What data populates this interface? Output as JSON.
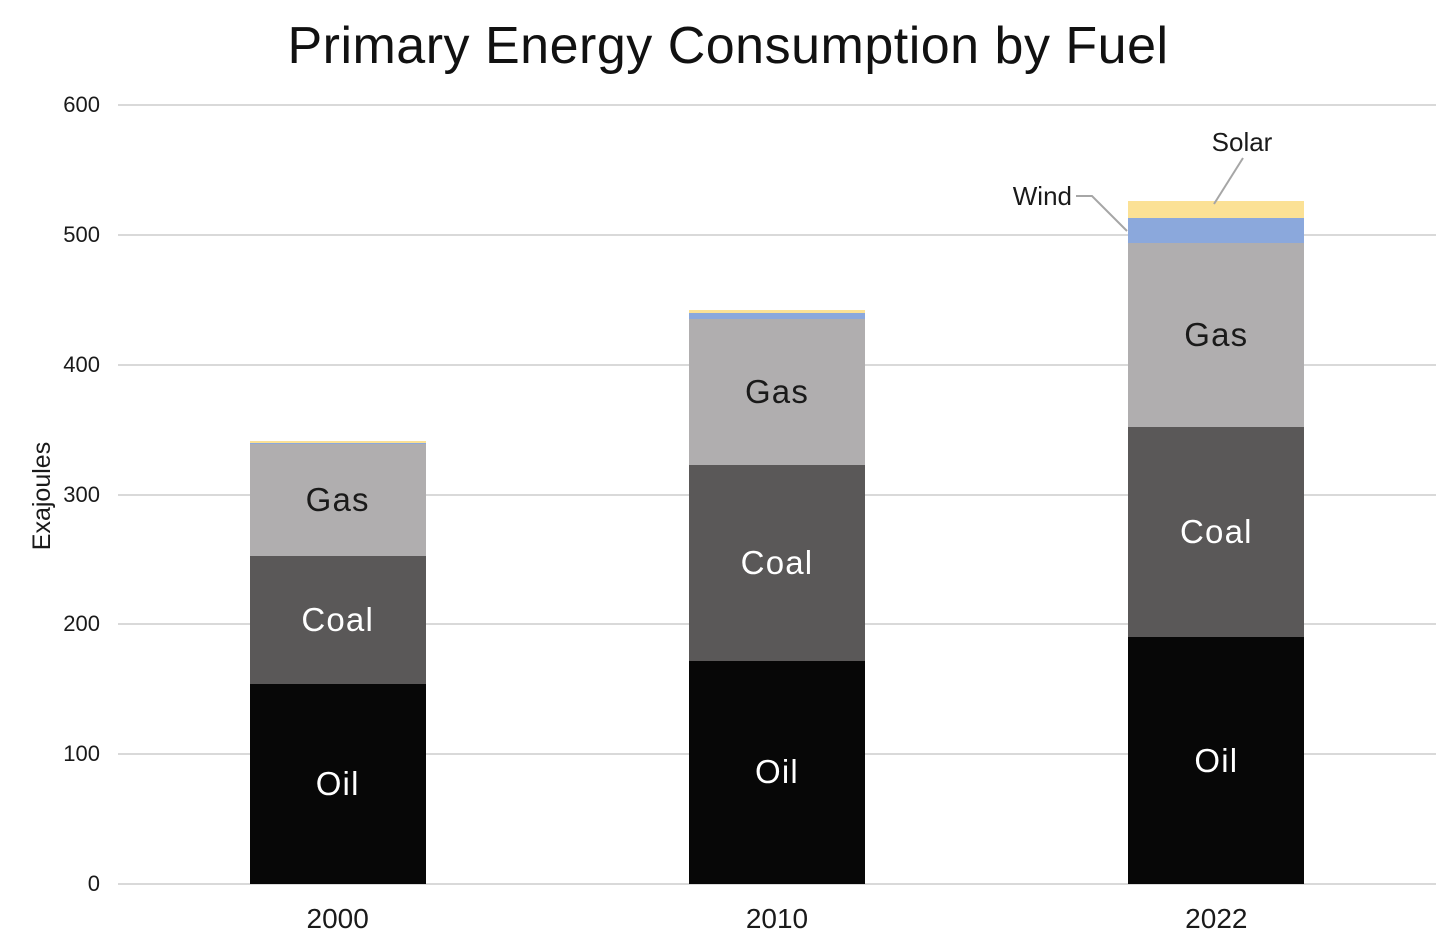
{
  "chart_data": {
    "type": "bar",
    "stacked": true,
    "title": "Primary Energy Consumption by Fuel",
    "xlabel": "",
    "ylabel": "Exajoules",
    "ylim": [
      0,
      600
    ],
    "yticks": [
      0,
      100,
      200,
      300,
      400,
      500,
      600
    ],
    "grid": true,
    "legend": "none",
    "categories": [
      "2000",
      "2010",
      "2022"
    ],
    "series": [
      {
        "name": "Oil",
        "color": "#070707",
        "label_color": "#ffffff",
        "show_label": true,
        "values": [
          154,
          172,
          190
        ]
      },
      {
        "name": "Coal",
        "color": "#5a5858",
        "label_color": "#ffffff",
        "show_label": true,
        "values": [
          99,
          151,
          162
        ]
      },
      {
        "name": "Gas",
        "color": "#b0aeaf",
        "label_color": "#1a1a1a",
        "show_label": true,
        "values": [
          86,
          112,
          142
        ]
      },
      {
        "name": "Wind",
        "color": "#8ba8dc",
        "label_color": "#1a1a1a",
        "show_label": false,
        "values": [
          1,
          4.5,
          19
        ]
      },
      {
        "name": "Solar",
        "color": "#fbe195",
        "label_color": "#1a1a1a",
        "show_label": false,
        "values": [
          1.5,
          2.5,
          13
        ]
      }
    ],
    "totals": [
      341.5,
      442,
      526
    ],
    "annotations": [
      {
        "text": "Wind",
        "target_series": "Wind",
        "target_category": "2022"
      },
      {
        "text": "Solar",
        "target_series": "Solar",
        "target_category": "2022"
      }
    ],
    "colors": {
      "gridline": "#d9d9d9",
      "leader_line": "#a6a6a6",
      "text": "#1a1a1a",
      "background": "#ffffff"
    }
  }
}
